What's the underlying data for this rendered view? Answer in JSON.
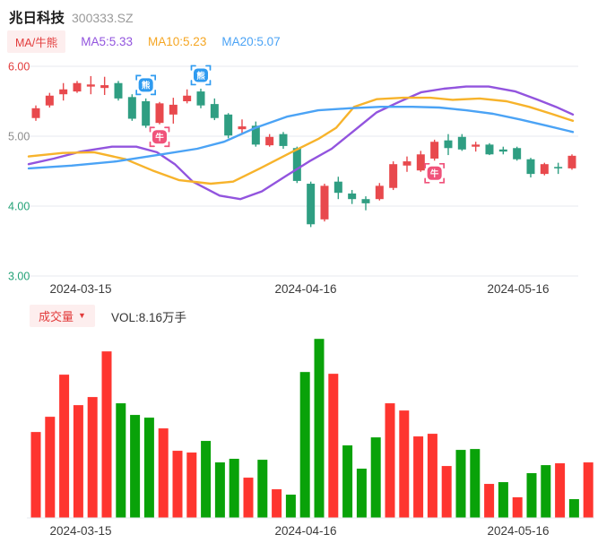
{
  "header": {
    "title": "兆日科技",
    "code": "300333.SZ",
    "legend_chip": "MA/牛熊",
    "ma5_label": "MA5:5.33",
    "ma10_label": "MA10:5.23",
    "ma20_label": "MA20:5.07"
  },
  "volume_header": {
    "chip": "成交量",
    "chip_arrow": "▼",
    "vol_label": "VOL:8.16万手"
  },
  "colors": {
    "grid": "#e7eaef",
    "candle_up": "#e8494d",
    "candle_down": "#2f9e82",
    "vol_up": "#fe352f",
    "vol_down": "#09a209",
    "ma5": "#9254de",
    "ma10": "#f7b32b",
    "ma20": "#4ba3f5",
    "badge_bear": "#2f9bf0",
    "badge_bull": "#f0527a",
    "axis_text": "#3b3b3b"
  },
  "chart_data": [
    {
      "type": "candlestick",
      "panel": "price",
      "title": "兆日科技 300333.SZ 日K",
      "ylim": [
        3.0,
        6.0
      ],
      "grid": true,
      "yticks": [
        {
          "value": "6.00",
          "num": 6.0,
          "color": "#e23b3b"
        },
        {
          "value": "5.00",
          "num": 5.0,
          "color": "#8c8c8c"
        },
        {
          "value": "4.00",
          "num": 4.0,
          "color": "#23a277"
        },
        {
          "value": "3.00",
          "num": 3.0,
          "color": "#23a277"
        }
      ],
      "xticks": [
        "2024-03-15",
        "2024-04-16",
        "2024-05-16"
      ],
      "candles_format": [
        "open",
        "close",
        "high",
        "low"
      ],
      "candles": [
        [
          5.26,
          5.4,
          5.44,
          5.22
        ],
        [
          5.44,
          5.58,
          5.62,
          5.41
        ],
        [
          5.6,
          5.67,
          5.76,
          5.51
        ],
        [
          5.64,
          5.76,
          5.79,
          5.62
        ],
        [
          5.71,
          5.74,
          5.86,
          5.6
        ],
        [
          5.69,
          5.73,
          5.85,
          5.59
        ],
        [
          5.76,
          5.54,
          5.79,
          5.51
        ],
        [
          5.56,
          5.25,
          5.6,
          5.22
        ],
        [
          5.5,
          5.15,
          5.54,
          5.12
        ],
        [
          5.19,
          5.47,
          5.49,
          5.17
        ],
        [
          5.31,
          5.45,
          5.55,
          5.18
        ],
        [
          5.5,
          5.58,
          5.67,
          5.47
        ],
        [
          5.64,
          5.44,
          5.68,
          5.4
        ],
        [
          5.46,
          5.26,
          5.54,
          5.23
        ],
        [
          5.31,
          5.01,
          5.33,
          4.97
        ],
        [
          5.1,
          5.14,
          5.24,
          5.04
        ],
        [
          5.15,
          4.88,
          5.21,
          4.85
        ],
        [
          4.87,
          4.99,
          5.03,
          4.85
        ],
        [
          5.03,
          4.86,
          5.06,
          4.82
        ],
        [
          4.83,
          4.36,
          4.85,
          4.33
        ],
        [
          4.32,
          3.74,
          4.35,
          3.7
        ],
        [
          3.81,
          4.29,
          4.32,
          3.78
        ],
        [
          4.35,
          4.19,
          4.42,
          4.1
        ],
        [
          4.18,
          4.1,
          4.23,
          4.03
        ],
        [
          4.1,
          4.04,
          4.14,
          3.94
        ],
        [
          4.1,
          4.29,
          4.33,
          4.08
        ],
        [
          4.26,
          4.6,
          4.64,
          4.23
        ],
        [
          4.58,
          4.64,
          4.71,
          4.49
        ],
        [
          4.51,
          4.74,
          4.79,
          4.49
        ],
        [
          4.68,
          4.92,
          4.95,
          4.65
        ],
        [
          4.94,
          4.83,
          5.03,
          4.73
        ],
        [
          4.99,
          4.81,
          5.03,
          4.79
        ],
        [
          4.85,
          4.88,
          4.92,
          4.78
        ],
        [
          4.88,
          4.74,
          4.9,
          4.73
        ],
        [
          4.81,
          4.78,
          4.85,
          4.74
        ],
        [
          4.83,
          4.67,
          4.85,
          4.65
        ],
        [
          4.67,
          4.46,
          4.69,
          4.41
        ],
        [
          4.46,
          4.6,
          4.62,
          4.44
        ],
        [
          4.56,
          4.54,
          4.62,
          4.46
        ],
        [
          4.54,
          4.72,
          4.74,
          4.52
        ]
      ],
      "series": [
        {
          "name": "MA5",
          "color": "#9254de",
          "points": [
            [
              32,
              4.6
            ],
            [
              60,
              4.68
            ],
            [
              90,
              4.78
            ],
            [
              125,
              4.85
            ],
            [
              152,
              4.85
            ],
            [
              175,
              4.77
            ],
            [
              195,
              4.6
            ],
            [
              215,
              4.35
            ],
            [
              245,
              4.15
            ],
            [
              268,
              4.1
            ],
            [
              292,
              4.21
            ],
            [
              320,
              4.44
            ],
            [
              345,
              4.64
            ],
            [
              370,
              4.82
            ],
            [
              395,
              5.08
            ],
            [
              420,
              5.34
            ],
            [
              445,
              5.49
            ],
            [
              470,
              5.63
            ],
            [
              495,
              5.68
            ],
            [
              520,
              5.71
            ],
            [
              545,
              5.71
            ],
            [
              575,
              5.64
            ],
            [
              600,
              5.52
            ],
            [
              620,
              5.42
            ],
            [
              639,
              5.31
            ]
          ]
        },
        {
          "name": "MA10",
          "color": "#f7b32b",
          "points": [
            [
              32,
              4.71
            ],
            [
              70,
              4.76
            ],
            [
              105,
              4.77
            ],
            [
              140,
              4.67
            ],
            [
              170,
              4.51
            ],
            [
              200,
              4.37
            ],
            [
              235,
              4.32
            ],
            [
              260,
              4.35
            ],
            [
              290,
              4.54
            ],
            [
              325,
              4.77
            ],
            [
              355,
              4.96
            ],
            [
              375,
              5.12
            ],
            [
              395,
              5.42
            ],
            [
              420,
              5.53
            ],
            [
              450,
              5.55
            ],
            [
              480,
              5.55
            ],
            [
              505,
              5.52
            ],
            [
              535,
              5.54
            ],
            [
              565,
              5.5
            ],
            [
              590,
              5.42
            ],
            [
              615,
              5.32
            ],
            [
              639,
              5.22
            ]
          ]
        },
        {
          "name": "MA20",
          "color": "#4ba3f5",
          "points": [
            [
              32,
              4.54
            ],
            [
              80,
              4.58
            ],
            [
              130,
              4.64
            ],
            [
              180,
              4.74
            ],
            [
              220,
              4.82
            ],
            [
              250,
              4.92
            ],
            [
              285,
              5.12
            ],
            [
              320,
              5.28
            ],
            [
              355,
              5.37
            ],
            [
              390,
              5.4
            ],
            [
              425,
              5.42
            ],
            [
              460,
              5.42
            ],
            [
              490,
              5.41
            ],
            [
              520,
              5.37
            ],
            [
              550,
              5.32
            ],
            [
              580,
              5.24
            ],
            [
              610,
              5.15
            ],
            [
              639,
              5.06
            ]
          ]
        }
      ],
      "annotations": [
        {
          "slot": 8,
          "type": "bear",
          "label": "熊"
        },
        {
          "slot": 12,
          "type": "bear",
          "label": "熊"
        },
        {
          "slot": 9,
          "type": "bull",
          "label": "牛"
        },
        {
          "slot": 29,
          "type": "bull",
          "label": "牛"
        }
      ]
    },
    {
      "type": "bar",
      "panel": "volume",
      "ylabel": "成交量",
      "unit": "万手",
      "ylim": [
        0,
        27.4
      ],
      "current_value": 8.16,
      "xticks": [
        "2024-03-15",
        "2024-04-16",
        "2024-05-16"
      ],
      "values": [
        12.63,
        14.87,
        21.06,
        16.58,
        17.77,
        24.48,
        16.85,
        15.14,
        14.74,
        13.16,
        9.87,
        9.61,
        11.32,
        8.16,
        8.69,
        5.92,
        8.55,
        4.21,
        3.42,
        21.45,
        26.32,
        21.19,
        10.66,
        7.24,
        11.84,
        16.85,
        15.79,
        11.98,
        12.37,
        7.63,
        10.0,
        10.13,
        5.0,
        5.26,
        3.03,
        6.58,
        7.76,
        8.03,
        2.76,
        8.16
      ],
      "directions": [
        "up",
        "up",
        "up",
        "up",
        "up",
        "up",
        "down",
        "down",
        "down",
        "up",
        "up",
        "up",
        "down",
        "down",
        "down",
        "up",
        "down",
        "up",
        "down",
        "down",
        "down",
        "up",
        "down",
        "down",
        "down",
        "up",
        "up",
        "up",
        "up",
        "up",
        "down",
        "down",
        "up",
        "down",
        "up",
        "down",
        "down",
        "up",
        "down",
        "up"
      ]
    }
  ]
}
